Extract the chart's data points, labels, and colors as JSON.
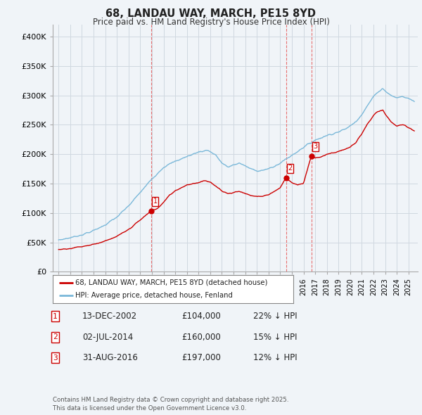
{
  "title": "68, LANDAU WAY, MARCH, PE15 8YD",
  "subtitle": "Price paid vs. HM Land Registry's House Price Index (HPI)",
  "ylabel_ticks": [
    "£0",
    "£50K",
    "£100K",
    "£150K",
    "£200K",
    "£250K",
    "£300K",
    "£350K",
    "£400K"
  ],
  "ytick_values": [
    0,
    50000,
    100000,
    150000,
    200000,
    250000,
    300000,
    350000,
    400000
  ],
  "ylim": [
    0,
    420000
  ],
  "xlim_start": 1994.5,
  "xlim_end": 2025.8,
  "sale_markers": [
    {
      "label": "1",
      "date_num": 2002.95,
      "price": 104000,
      "text": "13-DEC-2002",
      "price_text": "£104,000",
      "pct_text": "22% ↓ HPI"
    },
    {
      "label": "2",
      "date_num": 2014.5,
      "price": 160000,
      "text": "02-JUL-2014",
      "price_text": "£160,000",
      "pct_text": "15% ↓ HPI"
    },
    {
      "label": "3",
      "date_num": 2016.67,
      "price": 197000,
      "text": "31-AUG-2016",
      "price_text": "£197,000",
      "pct_text": "12% ↓ HPI"
    }
  ],
  "legend_line1": "68, LANDAU WAY, MARCH, PE15 8YD (detached house)",
  "legend_line2": "HPI: Average price, detached house, Fenland",
  "footer": "Contains HM Land Registry data © Crown copyright and database right 2025.\nThis data is licensed under the Open Government Licence v3.0.",
  "hpi_color": "#7ab8d9",
  "sale_color": "#cc0000",
  "vline_color": "#e87070",
  "background_color": "#f0f4f8",
  "grid_color": "#d0d8e0"
}
